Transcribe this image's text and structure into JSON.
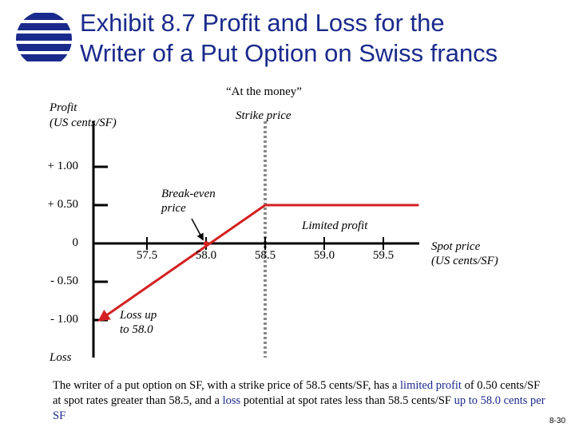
{
  "title": {
    "line1": "Exhibit 8.7  Profit and Loss for the",
    "line2": "Writer of a Put Option on Swiss francs"
  },
  "colors": {
    "title": "#1a2a8c",
    "payoff": "#d42020",
    "strike_line": "#888888",
    "axis": "#000000"
  },
  "logo_icon": "globe-stripes-icon",
  "chart_data": {
    "type": "line",
    "title": "",
    "ylabel_line1": "Profit",
    "ylabel_line2": "(US cents/SF)",
    "xlabel_line1": "Spot price",
    "xlabel_line2": "(US cents/SF)",
    "bottom_label": "Loss",
    "y_ticks": [
      1.0,
      0.5,
      0,
      -0.5,
      -1.0
    ],
    "y_tick_labels": [
      "+ 1.00",
      "+ 0.50",
      "0",
      "- 0.50",
      "- 1.00"
    ],
    "x_ticks": [
      57.5,
      58.0,
      58.5,
      59.0,
      59.5
    ],
    "x_tick_labels": [
      "57.5",
      "58.0",
      "58.5",
      "59.0",
      "59.5"
    ],
    "xlim": [
      57.0,
      60.0
    ],
    "ylim": [
      -1.3,
      1.3
    ],
    "series": [
      {
        "x": [
          57.1,
          58.0,
          58.5,
          59.8
        ],
        "y": [
          -1.0,
          0.0,
          0.5,
          0.5
        ]
      }
    ],
    "strike_price": 58.5,
    "break_even": 58.0,
    "annotations": {
      "at_the_money": "“At the money”",
      "strike_price": "Strike price",
      "break_even_line1": "Break-even",
      "break_even_line2": "price",
      "limited_profit": "Limited profit",
      "loss_line1": "Loss up",
      "loss_line2": "to 58.0"
    }
  },
  "caption": {
    "p1": "The writer of a put option on SF, with a strike price of 58.5 cents/SF, has a ",
    "h1": "limited profit",
    "p2": " of 0.50 cents/SF at spot rates greater than 58.5, and a ",
    "h2": "loss",
    "p3": " potential at spot rates less than 58.5 cents/SF ",
    "h3": "up to 58.0 cents per SF",
    "p4": ""
  },
  "page_number": "8-30"
}
